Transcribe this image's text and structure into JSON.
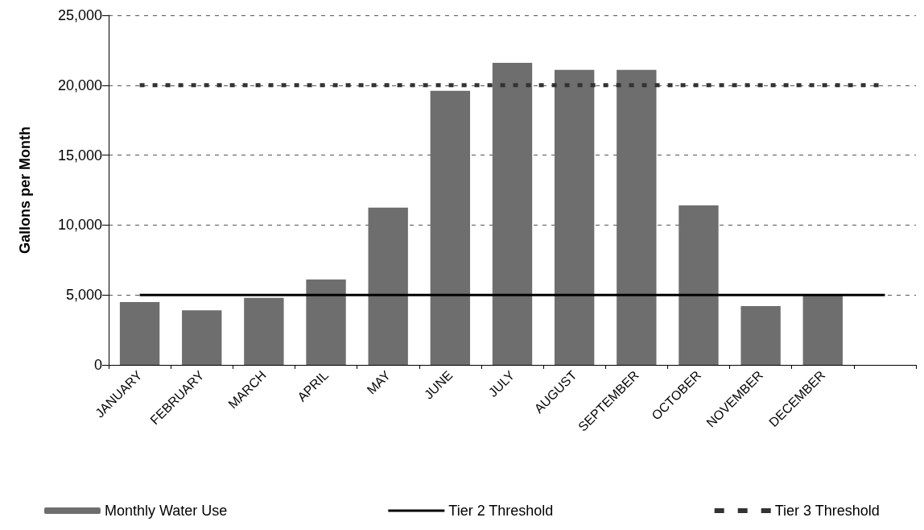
{
  "chart_data": {
    "type": "bar",
    "ylabel": "Gallons per Month",
    "categories": [
      "JANUARY",
      "FEBRUARY",
      "MARCH",
      "APRIL",
      "MAY",
      "JUNE",
      "JULY",
      "AUGUST",
      "SEPTEMBER",
      "OCTOBER",
      "NOVEMBER",
      "DECEMBER",
      null
    ],
    "series": [
      {
        "name": "Monthly Water Use",
        "color": "#6e6e6e",
        "values": [
          4500,
          3900,
          4800,
          6100,
          11250,
          19600,
          21600,
          21100,
          21100,
          11400,
          4200,
          5000,
          null
        ]
      },
      {
        "name": "Tier 2 Threshold",
        "type": "line",
        "color": "#000000",
        "line_style": "solid",
        "values": [
          5000,
          5000,
          5000,
          5000,
          5000,
          5000,
          5000,
          5000,
          5000,
          5000,
          5000,
          5000,
          5000
        ]
      },
      {
        "name": "Tier 3 Threshold",
        "type": "line",
        "color": "#333333",
        "line_style": "dashed",
        "values": [
          20000,
          20000,
          20000,
          20000,
          20000,
          20000,
          20000,
          20000,
          20000,
          20000,
          20000,
          20000,
          20000
        ]
      }
    ],
    "ylim": [
      0,
      25000
    ],
    "yticks": [
      {
        "value": 0,
        "label": "0"
      },
      {
        "value": 5000,
        "label": "5,000"
      },
      {
        "value": 10000,
        "label": "10,000"
      },
      {
        "value": 15000,
        "label": "15,000"
      },
      {
        "value": 20000,
        "label": "20,000"
      },
      {
        "value": 25000,
        "label": "25,000"
      }
    ],
    "grid": "y",
    "legend": "bottom",
    "marker": "none"
  }
}
